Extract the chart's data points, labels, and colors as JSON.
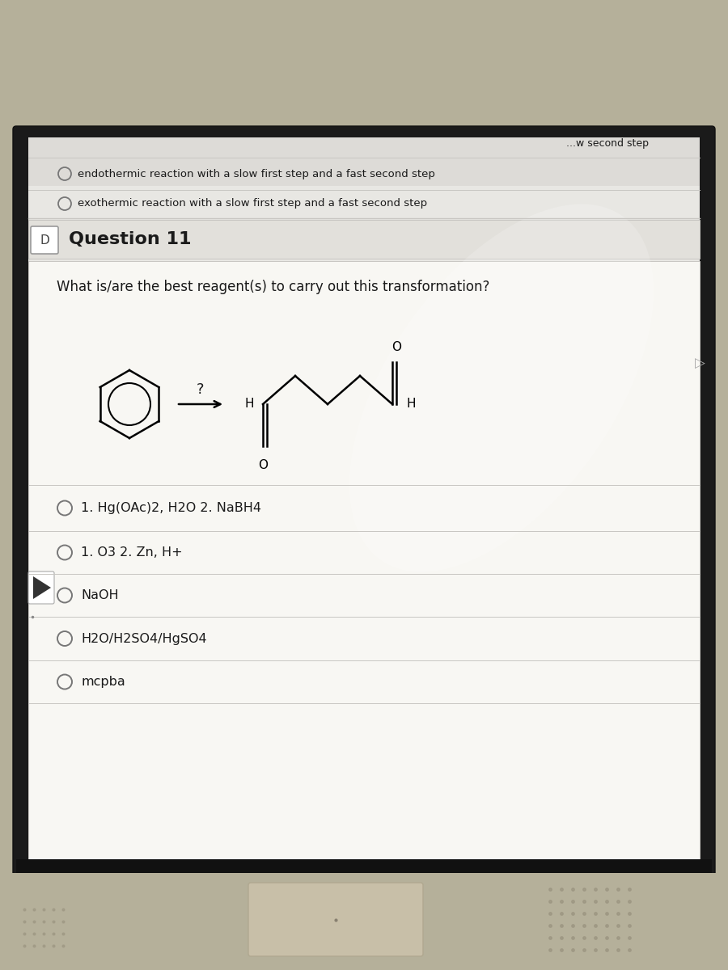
{
  "bg_laptop": "#b5b09a",
  "bg_screen_bezel": "#1a1a1a",
  "bg_screen": "#e8e7e3",
  "bg_top_strip": "#dddbd7",
  "bg_question_header": "#e2e0db",
  "bg_card": "#f0efeb",
  "bg_white": "#f8f7f3",
  "text_dark": "#1a1a1a",
  "text_mid": "#444444",
  "separator_color": "#c8c6c2",
  "question_header": "Question 11",
  "question_text": "What is/are the best reagent(s) to carry out this transformation?",
  "prev_options": [
    "endothermic reaction with a slow first step and a fast second step",
    "exothermic reaction with a slow first step and a fast second step"
  ],
  "answer_options": [
    "1. Hg(OAc)2, H2O 2. NaBH4",
    "1. O3 2. Zn, H+",
    "NaOH",
    "H2O/H2SO4/HgSO4",
    "mcpba"
  ],
  "partial_top_text": "...w second step",
  "glare_color": "#ffffff"
}
